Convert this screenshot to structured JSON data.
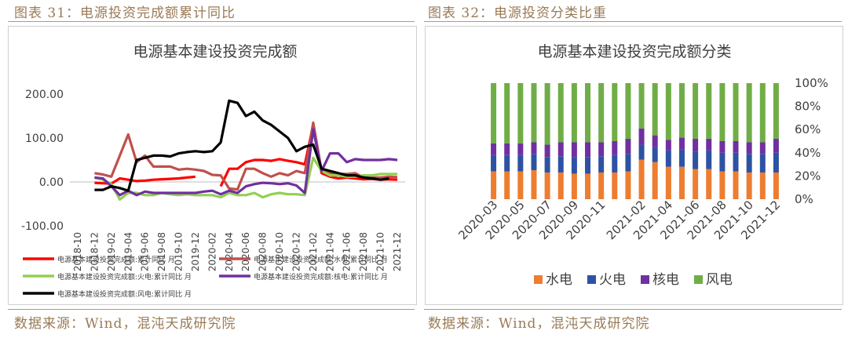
{
  "left": {
    "figure_title": "图表 31：电源投资完成额累计同比",
    "source": "数据来源：Wind，混沌天成研究院"
  },
  "right": {
    "figure_title": "图表 32：电源投资分类比重",
    "source": "数据来源：Wind，混沌天成研究院"
  },
  "chart_data": [
    {
      "type": "line",
      "title": "电源基本建设投资完成额",
      "categories": [
        "2018-10",
        "2018-11",
        "2018-12",
        "2019-01",
        "2019-02",
        "2019-03",
        "2019-04",
        "2019-05",
        "2019-06",
        "2019-07",
        "2019-08",
        "2019-09",
        "2019-10",
        "2019-11",
        "2019-12",
        "2020-01",
        "2020-02",
        "2020-03",
        "2020-04",
        "2020-05",
        "2020-06",
        "2020-07",
        "2020-08",
        "2020-09",
        "2020-10",
        "2020-11",
        "2020-12",
        "2021-01",
        "2021-02",
        "2021-03",
        "2021-04",
        "2021-05",
        "2021-06",
        "2021-07",
        "2021-08",
        "2021-09",
        "2021-10",
        "2021-11",
        "2021-12"
      ],
      "x_tick_labels": [
        "2018-10",
        "2018-12",
        "2019-02",
        "2019-04",
        "2019-06",
        "2019-08",
        "2019-10",
        "2019-12",
        "2020-02",
        "2020-04",
        "2020-06",
        "2020-08",
        "2020-10",
        "2020-12",
        "2021-02",
        "2021-04",
        "2021-06",
        "2021-08",
        "2021-10",
        "2021-12"
      ],
      "ylim": [
        -100,
        200
      ],
      "y_ticks": [
        -100,
        0,
        100,
        200
      ],
      "y_tick_labels": [
        "-100.00",
        "0.00",
        "100.00",
        "200.00"
      ],
      "legend_position": "bottom",
      "series": [
        {
          "name": "电源基本建设投资完成额:累计同比 月",
          "color": "#ff0000",
          "values": [
            null,
            null,
            -2,
            -3,
            -4,
            8,
            5,
            2,
            3,
            5,
            6,
            7,
            8,
            10,
            12,
            null,
            null,
            -10,
            30,
            30,
            45,
            50,
            50,
            48,
            52,
            48,
            45,
            40,
            130,
            20,
            12,
            8,
            10,
            8,
            6,
            7,
            5,
            6,
            5
          ]
        },
        {
          "name": "电源基本建设投资完成额:水电:累计同比 月",
          "color": "#c0504d",
          "values": [
            null,
            null,
            20,
            17,
            12,
            60,
            108,
            45,
            60,
            35,
            35,
            35,
            28,
            30,
            28,
            25,
            16,
            15,
            -15,
            -17,
            30,
            30,
            20,
            12,
            20,
            15,
            25,
            20,
            135,
            25,
            20,
            18,
            18,
            20,
            10,
            10,
            10,
            12,
            11
          ]
        },
        {
          "name": "电源基本建设投资完成额:火电:累计同比 月",
          "color": "#92d050",
          "values": [
            null,
            null,
            10,
            5,
            -5,
            -40,
            -25,
            -25,
            -30,
            -30,
            -25,
            -28,
            -30,
            -28,
            -30,
            -30,
            -30,
            -35,
            -25,
            -30,
            -30,
            -25,
            -35,
            -28,
            -25,
            -28,
            -28,
            -30,
            55,
            25,
            15,
            15,
            12,
            12,
            15,
            15,
            18,
            18,
            18
          ]
        },
        {
          "name": "电源基本建设投资完成额:核电:累计同比 月",
          "color": "#7030a0",
          "values": [
            null,
            null,
            10,
            8,
            -10,
            -30,
            -20,
            -30,
            -22,
            -25,
            -25,
            -25,
            -25,
            -25,
            -25,
            -22,
            -20,
            -28,
            -20,
            -25,
            -10,
            -5,
            -2,
            -3,
            -5,
            -3,
            -8,
            -25,
            120,
            25,
            65,
            65,
            45,
            52,
            50,
            50,
            50,
            52,
            50
          ]
        },
        {
          "name": "电源基本建设投资完成额:风电:累计同比 月",
          "color": "#000000",
          "values": [
            null,
            null,
            -18,
            -18,
            -10,
            -14,
            -20,
            50,
            55,
            60,
            60,
            58,
            65,
            68,
            70,
            68,
            70,
            90,
            185,
            180,
            150,
            160,
            140,
            130,
            115,
            100,
            70,
            80,
            85,
            30,
            25,
            20,
            15,
            15,
            10,
            8,
            5,
            8,
            null
          ]
        }
      ]
    },
    {
      "type": "bar",
      "stacked": true,
      "title": "电源基本建设投资完成额分类",
      "categories": [
        "2020-03",
        "2020-04",
        "2020-05",
        "2020-06",
        "2020-07",
        "2020-08",
        "2020-09",
        "2020-10",
        "2020-11",
        "2020-12",
        "2021-01",
        "2021-02",
        "2021-03",
        "2021-04",
        "2021-05",
        "2021-06",
        "2021-07",
        "2021-08",
        "2021-09",
        "2021-10",
        "2021-11",
        "2021-12"
      ],
      "x_tick_labels": [
        "2020-03",
        "2020-05",
        "2020-07",
        "2020-09",
        "2020-11",
        "2021-02",
        "2021-04",
        "2021-06",
        "2021-08",
        "2021-10",
        "2021-12"
      ],
      "ylim": [
        0,
        100
      ],
      "y_ticks": [
        0,
        20,
        40,
        60,
        80,
        100
      ],
      "y_tick_labels": [
        "0%",
        "20%",
        "40%",
        "60%",
        "80%",
        "100%"
      ],
      "legend_position": "bottom",
      "series": [
        {
          "name": "水电",
          "color": "#ed7d31",
          "values": [
            24,
            24,
            24,
            25,
            23,
            23,
            22,
            22,
            23,
            23,
            24,
            34,
            32,
            28,
            28,
            26,
            26,
            24,
            24,
            23,
            23,
            23
          ]
        },
        {
          "name": "火电",
          "color": "#2e52a3",
          "values": [
            14,
            14,
            14,
            14,
            13,
            14,
            14,
            14,
            14,
            15,
            15,
            13,
            13,
            14,
            15,
            15,
            16,
            16,
            16,
            16,
            16,
            17
          ]
        },
        {
          "name": "核电",
          "color": "#7030a0",
          "values": [
            10,
            10,
            10,
            10,
            11,
            12,
            13,
            13,
            12,
            12,
            13,
            14,
            10,
            9,
            10,
            11,
            10,
            10,
            10,
            10,
            10,
            12
          ]
        },
        {
          "name": "风电",
          "color": "#70ad47",
          "values": [
            52,
            52,
            52,
            51,
            53,
            51,
            51,
            51,
            51,
            50,
            48,
            39,
            45,
            49,
            47,
            48,
            48,
            50,
            50,
            51,
            51,
            48
          ]
        }
      ]
    }
  ]
}
